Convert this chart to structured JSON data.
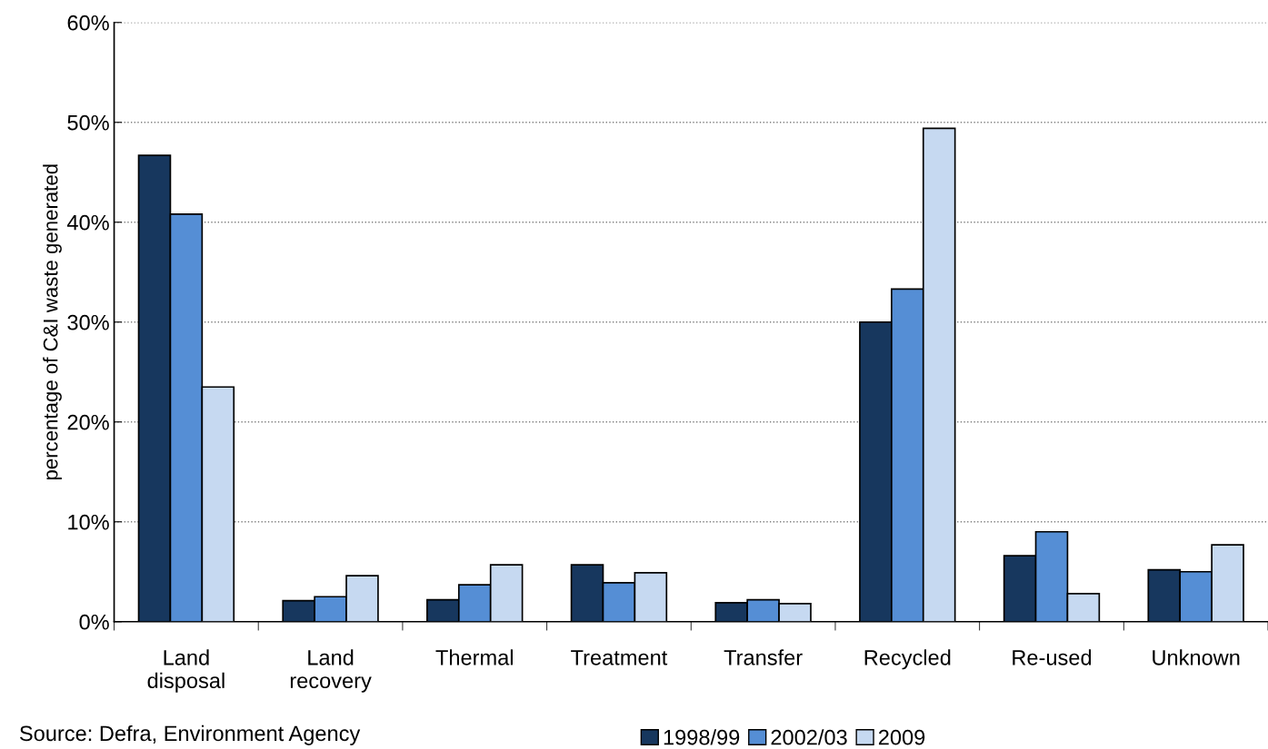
{
  "chart_data": {
    "type": "bar",
    "ylabel": "percentage of C&I waste generated",
    "categories": [
      "Land\ndisposal",
      "Land\nrecovery",
      "Thermal",
      "Treatment",
      "Transfer",
      "Recycled",
      "Re-used",
      "Unknown"
    ],
    "series": [
      {
        "name": "1998/99",
        "color": "#17375e",
        "values": [
          46.7,
          2.1,
          2.2,
          5.7,
          1.9,
          30.0,
          6.6,
          5.2
        ]
      },
      {
        "name": "2002/03",
        "color": "#558ed5",
        "values": [
          40.8,
          2.5,
          3.7,
          3.9,
          2.2,
          33.3,
          9.0,
          5.0
        ]
      },
      {
        "name": "2009",
        "color": "#c6d9f1",
        "values": [
          23.5,
          4.6,
          5.7,
          4.9,
          1.8,
          49.4,
          2.8,
          7.7
        ]
      }
    ],
    "ylim": [
      0,
      60
    ],
    "yticks": [
      {
        "value": 0,
        "label": "0%"
      },
      {
        "value": 10,
        "label": "10%"
      },
      {
        "value": 20,
        "label": "20%"
      },
      {
        "value": 30,
        "label": "30%"
      },
      {
        "value": 40,
        "label": "40%"
      },
      {
        "value": 50,
        "label": "50%"
      },
      {
        "value": 60,
        "label": "60%"
      }
    ],
    "grid": "y",
    "legend": "bottom",
    "annotations": [
      "Source: Defra, Environment Agency"
    ]
  }
}
